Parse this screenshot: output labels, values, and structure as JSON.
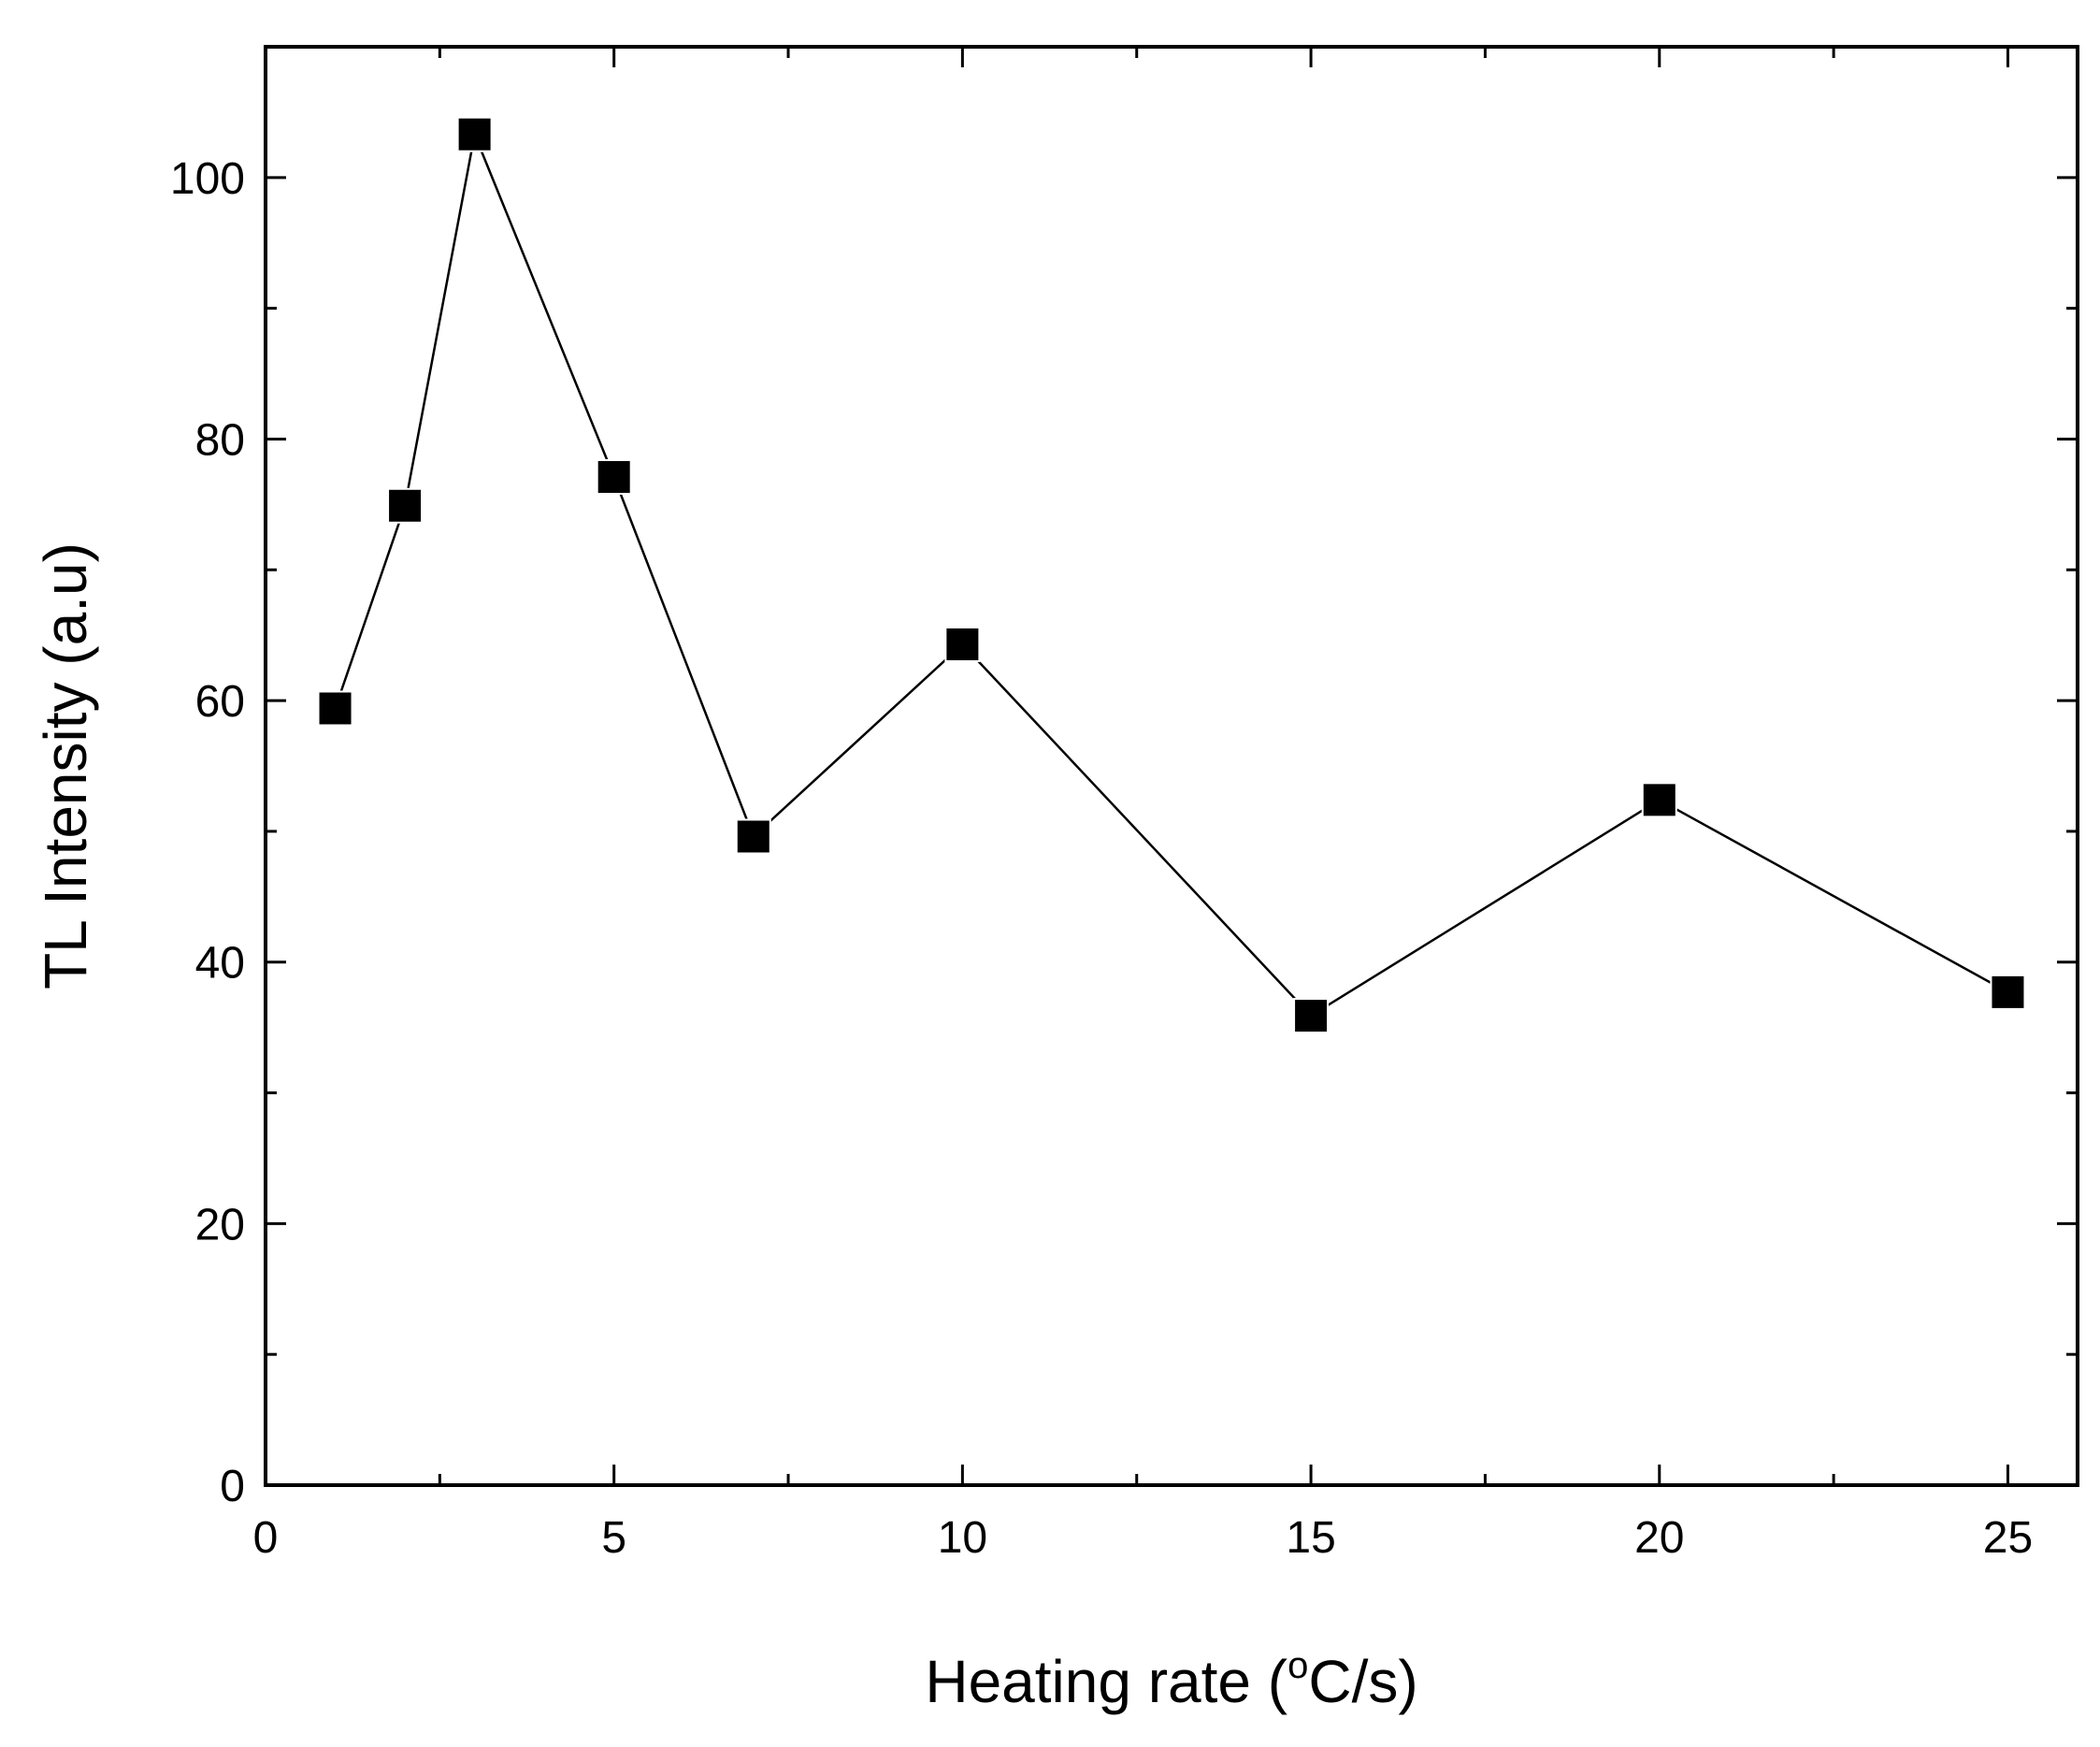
{
  "chart_data": {
    "type": "line",
    "marker": "square",
    "title": "",
    "xlabel": "Heating rate (",
    "xlabel_degree": "o",
    "xlabel_suffix": "C/s)",
    "ylabel": "TL Intensity (a.u)",
    "xlim": [
      0,
      26
    ],
    "ylim": [
      0,
      110
    ],
    "xticks": [
      0,
      5,
      10,
      15,
      20,
      25
    ],
    "xminor": [
      2.5,
      7.5,
      12.5,
      17.5,
      22.5
    ],
    "yticks": [
      0,
      20,
      40,
      60,
      80,
      100
    ],
    "yminor": [
      10,
      30,
      50,
      70,
      90
    ],
    "tick_labels": {
      "x": [
        "0",
        "5",
        "10",
        "15",
        "20",
        "25"
      ],
      "y": [
        "0",
        "20",
        "40",
        "60",
        "80",
        "100"
      ]
    },
    "series": [
      {
        "name": "TL Intensity",
        "x": [
          1,
          2,
          3,
          5,
          7,
          10,
          15,
          20,
          25
        ],
        "y": [
          59.4,
          74.9,
          103.3,
          77.1,
          49.6,
          64.3,
          35.9,
          52.4,
          37.7
        ]
      }
    ],
    "grid": false,
    "legend": "none",
    "colors": {
      "line": "#000000",
      "marker": "#000000",
      "axes": "#000000",
      "background": "#ffffff"
    }
  }
}
